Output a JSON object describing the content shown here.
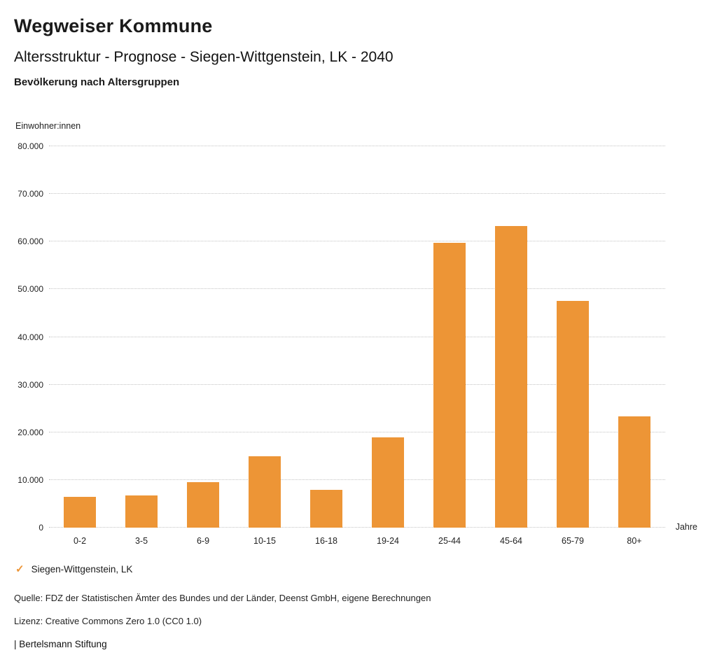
{
  "header": {
    "title": "Wegweiser Kommune",
    "subtitle": "Altersstruktur - Prognose - Siegen-Wittgenstein, LK - 2040"
  },
  "chart_data": {
    "type": "bar",
    "title": "Bevölkerung nach Altersgruppen",
    "categories": [
      "0-2",
      "3-5",
      "6-9",
      "10-15",
      "16-18",
      "19-24",
      "25-44",
      "45-64",
      "65-79",
      "80+"
    ],
    "values": [
      6500,
      6700,
      9500,
      15000,
      7900,
      18900,
      59700,
      63300,
      47500,
      23400
    ],
    "series_name": "Siegen-Wittgenstein, LK",
    "ylabel": "Einwohner:innen",
    "xlabel": "Jahre",
    "ylim": [
      0,
      80000
    ],
    "yticks": [
      {
        "value": 0,
        "label": "0"
      },
      {
        "value": 10000,
        "label": "10.000"
      },
      {
        "value": 20000,
        "label": "20.000"
      },
      {
        "value": 30000,
        "label": "30.000"
      },
      {
        "value": 40000,
        "label": "40.000"
      },
      {
        "value": 50000,
        "label": "50.000"
      },
      {
        "value": 60000,
        "label": "60.000"
      },
      {
        "value": 70000,
        "label": "70.000"
      },
      {
        "value": 80000,
        "label": "80.000"
      }
    ],
    "bar_color": "#ED9536",
    "grid": "horizontal-dotted",
    "legend_position": "bottom-left"
  },
  "legend": {
    "check_color": "#ED9536"
  },
  "footer": {
    "source": "Quelle: FDZ der Statistischen Ämter des Bundes und der Länder, Deenst GmbH, eigene Berechnungen",
    "license": "Lizenz: Creative Commons Zero 1.0 (CC0 1.0)",
    "attribution": "| Bertelsmann Stiftung"
  }
}
